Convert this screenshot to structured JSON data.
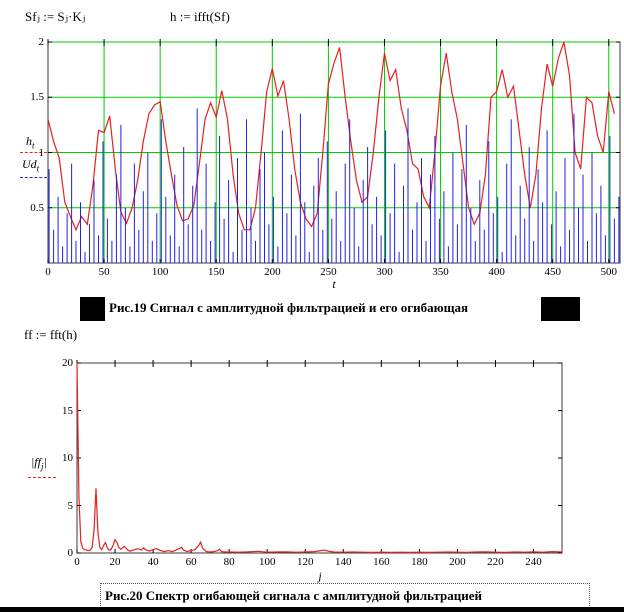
{
  "app": {
    "kind": "mathcad-worksheet"
  },
  "formulas": {
    "f1": "Sfⱼ := Sⱼ·Kⱼ",
    "f2": "h := ifft(Sf)",
    "f3": "ff := fft(h)"
  },
  "captions": {
    "fig19": "Рис.19  Сигнал с амплитудной фильтрацией и его огибающая",
    "fig20": "Рис.20  Спектр огибающей сигнала с амплитудной фильтрацией"
  },
  "colors": {
    "grid": "#00cc00",
    "trace_envelope": "#e32222",
    "trace_signal": "#2222e3",
    "trace_spectrum": "#e32222",
    "frame": "#3a3a3a",
    "caption_text": "#000000"
  },
  "chart_data": [
    {
      "id": "signal-with-envelope",
      "type": "line",
      "title": "Рис.19  Сигнал с амплитудной фильтрацией и его огибающая",
      "xlabel": "t",
      "ylabel": "",
      "x": {
        "min": 0,
        "max": 510,
        "tick_labels": [
          "0",
          "50",
          "100",
          "150",
          "200",
          "250",
          "300",
          "350",
          "400",
          "450",
          "500"
        ],
        "ticks": [
          0,
          50,
          100,
          150,
          200,
          250,
          300,
          350,
          400,
          450,
          500
        ]
      },
      "y": {
        "min": 0,
        "max": 2,
        "tick_labels": [
          "0.5",
          "1",
          "1.5",
          "2"
        ],
        "ticks": [
          0.5,
          1,
          1.5,
          2
        ]
      },
      "grid": {
        "show": true,
        "color": "#00cc00"
      },
      "legend_position": "left",
      "legend": [
        {
          "name": "h",
          "sub": "t",
          "suffix": "",
          "color": "#e32222",
          "style": "solid"
        },
        {
          "name": "Ud",
          "sub": "t",
          "suffix": "",
          "color": "#2222e3",
          "style": "stem"
        }
      ],
      "series": [
        {
          "name": "h (envelope)",
          "kind": "line",
          "x_start": 0,
          "x_step": 5,
          "values": [
            1.3,
            1.1,
            0.95,
            0.55,
            0.42,
            0.3,
            0.42,
            0.35,
            0.7,
            1.2,
            1.18,
            1.33,
            0.85,
            0.46,
            0.36,
            0.5,
            0.75,
            1.1,
            1.35,
            1.43,
            1.46,
            1.1,
            0.8,
            0.52,
            0.38,
            0.4,
            0.52,
            0.9,
            1.3,
            1.45,
            1.32,
            1.56,
            1.3,
            0.8,
            0.45,
            0.3,
            0.3,
            0.5,
            1.0,
            1.55,
            1.76,
            1.51,
            1.65,
            1.3,
            0.85,
            0.55,
            0.4,
            0.33,
            0.45,
            1.0,
            1.62,
            1.81,
            1.95,
            1.5,
            1.1,
            0.75,
            0.55,
            0.6,
            1.0,
            1.5,
            1.9,
            1.65,
            1.75,
            1.4,
            1.2,
            0.9,
            0.85,
            0.6,
            0.5,
            1.0,
            1.6,
            1.9,
            1.55,
            1.3,
            0.9,
            0.5,
            0.35,
            0.45,
            0.8,
            1.5,
            1.55,
            1.75,
            1.5,
            1.6,
            1.2,
            0.8,
            0.5,
            0.8,
            1.4,
            1.8,
            1.6,
            1.85,
            2.0,
            1.7,
            1.0,
            0.85,
            1.5,
            1.45,
            1.15,
            1.0,
            1.55,
            1.35
          ]
        },
        {
          "name": "Ud (filtered signal, stems)",
          "kind": "stem",
          "x_start": 1,
          "x_step": 4,
          "values": [
            0.85,
            0.3,
            0.6,
            0.15,
            0.45,
            0.9,
            0.2,
            0.55,
            0.1,
            0.35,
            0.75,
            0.25,
            1.1,
            0.4,
            0.2,
            0.8,
            1.25,
            0.5,
            0.15,
            0.9,
            0.3,
            0.65,
            1.0,
            0.2,
            0.45,
            1.3,
            0.6,
            0.25,
            0.8,
            0.15,
            1.05,
            0.35,
            0.7,
            1.4,
            0.3,
            0.9,
            0.2,
            0.55,
            1.15,
            0.4,
            0.75,
            0.1,
            0.95,
            0.3,
            1.3,
            0.5,
            0.2,
            0.85,
            1.0,
            0.35,
            0.6,
            0.15,
            1.2,
            0.45,
            0.8,
            0.25,
            1.35,
            0.55,
            0.1,
            0.7,
            0.95,
            0.3,
            1.1,
            0.4,
            0.65,
            0.2,
            0.9,
            1.3,
            0.5,
            0.15,
            0.75,
            1.05,
            0.35,
            0.6,
            0.25,
            1.2,
            0.45,
            0.9,
            0.1,
            0.7,
            1.4,
            0.3,
            0.55,
            0.95,
            0.2,
            0.8,
            1.15,
            0.4,
            0.65,
            0.15,
            1.0,
            0.35,
            0.85,
            1.25,
            0.5,
            0.2,
            0.75,
            0.3,
            1.1,
            0.45,
            0.6,
            0.1,
            0.9,
            1.3,
            0.25,
            0.7,
            0.4,
            1.05,
            0.2,
            0.85,
            0.55,
            1.2,
            0.35,
            0.65,
            0.15,
            0.95,
            0.3,
            1.35,
            0.5,
            0.8,
            0.2,
            1.0,
            0.45,
            0.7,
            0.25,
            1.15,
            0.4,
            0.6
          ]
        }
      ]
    },
    {
      "id": "envelope-spectrum",
      "type": "line",
      "title": "Рис.20  Спектр огибающей сигнала с амплитудной фильтрацией",
      "xlabel": "j",
      "ylabel": "",
      "x": {
        "min": 0,
        "max": 255,
        "tick_labels": [
          "0",
          "20",
          "40",
          "60",
          "80",
          "100",
          "120",
          "140",
          "160",
          "180",
          "200",
          "220",
          "240"
        ],
        "ticks": [
          0,
          20,
          40,
          60,
          80,
          100,
          120,
          140,
          160,
          180,
          200,
          220,
          240
        ]
      },
      "y": {
        "min": 0,
        "max": 20,
        "tick_labels": [
          "0",
          "5",
          "10",
          "15",
          "20"
        ],
        "ticks": [
          0,
          5,
          10,
          15,
          20
        ]
      },
      "grid": {
        "show": false
      },
      "legend_position": "left",
      "legend": [
        {
          "name": "|ff",
          "sub": "j",
          "suffix": "|",
          "color": "#e32222",
          "style": "solid"
        }
      ],
      "series": [
        {
          "name": "|ff_j|",
          "kind": "line",
          "points": [
            [
              0,
              20
            ],
            [
              1,
              6
            ],
            [
              2,
              1.2
            ],
            [
              3,
              0.5
            ],
            [
              4,
              0.35
            ],
            [
              5,
              0.3
            ],
            [
              6,
              0.25
            ],
            [
              7,
              0.3
            ],
            [
              8,
              0.6
            ],
            [
              9,
              2.5
            ],
            [
              10,
              6.8
            ],
            [
              11,
              2.2
            ],
            [
              12,
              0.6
            ],
            [
              13,
              0.35
            ],
            [
              14,
              0.8
            ],
            [
              15,
              1.1
            ],
            [
              16,
              0.5
            ],
            [
              17,
              0.3
            ],
            [
              18,
              0.4
            ],
            [
              19,
              0.8
            ],
            [
              20,
              1.4
            ],
            [
              21,
              1.1
            ],
            [
              22,
              0.6
            ],
            [
              23,
              0.4
            ],
            [
              24,
              0.55
            ],
            [
              25,
              0.7
            ],
            [
              26,
              0.45
            ],
            [
              27,
              0.25
            ],
            [
              28,
              0.2
            ],
            [
              30,
              0.35
            ],
            [
              32,
              0.45
            ],
            [
              34,
              0.3
            ],
            [
              35,
              0.55
            ],
            [
              36,
              0.35
            ],
            [
              38,
              0.2
            ],
            [
              40,
              0.35
            ],
            [
              42,
              0.45
            ],
            [
              44,
              0.25
            ],
            [
              46,
              0.15
            ],
            [
              48,
              0.25
            ],
            [
              50,
              0.15
            ],
            [
              52,
              0.3
            ],
            [
              54,
              0.5
            ],
            [
              55,
              0.6
            ],
            [
              56,
              0.3
            ],
            [
              58,
              0.15
            ],
            [
              60,
              0.25
            ],
            [
              62,
              0.35
            ],
            [
              64,
              0.8
            ],
            [
              65,
              1.15
            ],
            [
              66,
              0.5
            ],
            [
              68,
              0.15
            ],
            [
              70,
              0.1
            ],
            [
              72,
              0.15
            ],
            [
              74,
              0.25
            ],
            [
              75,
              0.4
            ],
            [
              76,
              0.15
            ],
            [
              78,
              0.1
            ],
            [
              80,
              0.1
            ],
            [
              85,
              0.08
            ],
            [
              90,
              0.12
            ],
            [
              95,
              0.18
            ],
            [
              100,
              0.08
            ],
            [
              105,
              0.1
            ],
            [
              110,
              0.12
            ],
            [
              115,
              0.08
            ],
            [
              120,
              0.1
            ],
            [
              125,
              0.15
            ],
            [
              128,
              0.25
            ],
            [
              130,
              0.3
            ],
            [
              132,
              0.2
            ],
            [
              135,
              0.1
            ],
            [
              140,
              0.08
            ],
            [
              145,
              0.1
            ],
            [
              150,
              0.08
            ],
            [
              155,
              0.06
            ],
            [
              160,
              0.08
            ],
            [
              165,
              0.06
            ],
            [
              170,
              0.08
            ],
            [
              175,
              0.06
            ],
            [
              180,
              0.08
            ],
            [
              185,
              0.06
            ],
            [
              190,
              0.08
            ],
            [
              195,
              0.1
            ],
            [
              200,
              0.08
            ],
            [
              205,
              0.06
            ],
            [
              210,
              0.1
            ],
            [
              215,
              0.12
            ],
            [
              220,
              0.08
            ],
            [
              225,
              0.06
            ],
            [
              230,
              0.1
            ],
            [
              235,
              0.08
            ],
            [
              240,
              0.12
            ],
            [
              245,
              0.08
            ],
            [
              250,
              0.15
            ],
            [
              255,
              0.1
            ]
          ]
        }
      ]
    }
  ]
}
